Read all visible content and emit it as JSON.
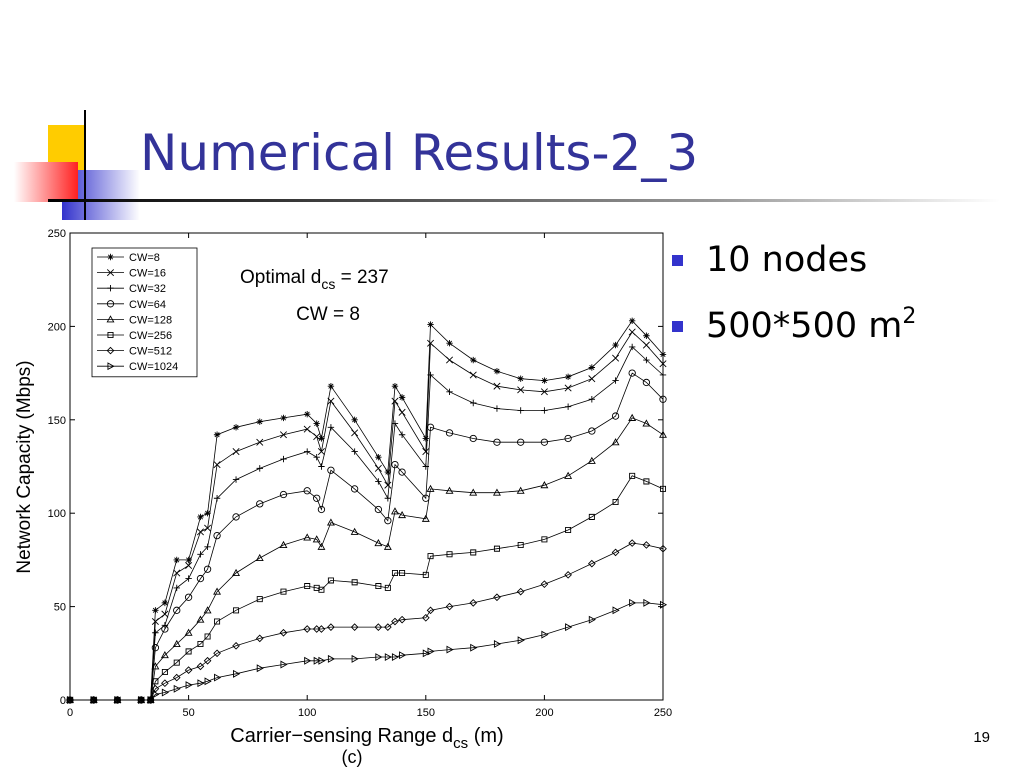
{
  "slide": {
    "title": "Numerical Results-2_3",
    "bullets": [
      {
        "text": "10 nodes"
      },
      {
        "text": "500*500 m",
        "sup": "2"
      }
    ],
    "page_number": "19"
  },
  "chart_data": {
    "type": "line",
    "y_label": "Network Capacity (Mbps)",
    "x_label": {
      "main": "Carrier−sensing Range d",
      "sub": "cs",
      "tail": " (m)"
    },
    "caption": "(c)",
    "annotations": [
      {
        "main": "Optimal d",
        "sub": "cs",
        "tail": " = 237"
      },
      {
        "main": "CW = 8"
      }
    ],
    "color": "#000000",
    "xlim": [
      0,
      250
    ],
    "xticks": [
      0,
      50,
      100,
      150,
      200,
      250
    ],
    "ylim": [
      0,
      250
    ],
    "yticks": [
      0,
      50,
      100,
      150,
      200,
      250
    ],
    "legend": "upper left",
    "x": [
      0,
      10,
      20,
      30,
      34,
      36,
      40,
      45,
      50,
      55,
      58,
      62,
      70,
      80,
      90,
      100,
      104,
      106,
      110,
      120,
      130,
      134,
      137,
      140,
      150,
      152,
      160,
      170,
      180,
      190,
      200,
      210,
      220,
      230,
      237,
      243,
      250
    ],
    "series": [
      {
        "name": "CW=8",
        "marker": "asterisk",
        "values": [
          0,
          0,
          0,
          0,
          0,
          48,
          52,
          75,
          75,
          98,
          100,
          142,
          146,
          149,
          151,
          153,
          148,
          140,
          168,
          150,
          130,
          122,
          168,
          162,
          140,
          201,
          191,
          182,
          176,
          172,
          171,
          173,
          178,
          190,
          203,
          195,
          185
        ]
      },
      {
        "name": "CW=16",
        "marker": "x",
        "values": [
          0,
          0,
          0,
          0,
          0,
          42,
          46,
          68,
          72,
          90,
          92,
          126,
          133,
          138,
          142,
          145,
          141,
          133,
          160,
          143,
          124,
          115,
          160,
          154,
          133,
          191,
          182,
          174,
          168,
          166,
          165,
          167,
          172,
          183,
          197,
          190,
          180
        ]
      },
      {
        "name": "CW=32",
        "marker": "plus",
        "values": [
          0,
          0,
          0,
          0,
          0,
          36,
          40,
          60,
          65,
          78,
          82,
          108,
          118,
          124,
          129,
          133,
          130,
          125,
          146,
          133,
          117,
          108,
          148,
          142,
          125,
          174,
          165,
          159,
          156,
          155,
          155,
          157,
          161,
          171,
          189,
          182,
          174
        ]
      },
      {
        "name": "CW=64",
        "marker": "circle",
        "values": [
          0,
          0,
          0,
          0,
          0,
          28,
          38,
          48,
          55,
          65,
          70,
          88,
          98,
          105,
          110,
          112,
          108,
          102,
          123,
          113,
          102,
          96,
          126,
          122,
          108,
          146,
          143,
          140,
          138,
          138,
          138,
          140,
          144,
          152,
          175,
          170,
          161
        ]
      },
      {
        "name": "CW=128",
        "marker": "triangle",
        "values": [
          0,
          0,
          0,
          0,
          0,
          18,
          24,
          30,
          36,
          43,
          48,
          58,
          68,
          76,
          83,
          87,
          86,
          82,
          95,
          90,
          84,
          82,
          101,
          99,
          97,
          113,
          112,
          111,
          111,
          112,
          115,
          120,
          128,
          138,
          151,
          148,
          142
        ]
      },
      {
        "name": "CW=256",
        "marker": "square",
        "values": [
          0,
          0,
          0,
          0,
          0,
          10,
          15,
          20,
          26,
          30,
          34,
          42,
          48,
          54,
          58,
          61,
          60,
          59,
          64,
          63,
          61,
          60,
          68,
          68,
          67,
          77,
          78,
          79,
          81,
          83,
          86,
          91,
          98,
          106,
          120,
          117,
          113
        ]
      },
      {
        "name": "CW=512",
        "marker": "diamond",
        "values": [
          0,
          0,
          0,
          0,
          0,
          6,
          9,
          12,
          16,
          18,
          21,
          25,
          29,
          33,
          36,
          38,
          38,
          38,
          39,
          39,
          39,
          39,
          42,
          43,
          44,
          48,
          50,
          52,
          55,
          58,
          62,
          67,
          73,
          79,
          84,
          83,
          81
        ]
      },
      {
        "name": "CW=1024",
        "marker": "triangle-right",
        "values": [
          0,
          0,
          0,
          0,
          0,
          3,
          4,
          6,
          8,
          9,
          10,
          12,
          14,
          17,
          19,
          21,
          21,
          21,
          22,
          22,
          23,
          23,
          23,
          24,
          25,
          26,
          27,
          28,
          30,
          32,
          35,
          39,
          43,
          48,
          52,
          52,
          51
        ]
      }
    ]
  }
}
